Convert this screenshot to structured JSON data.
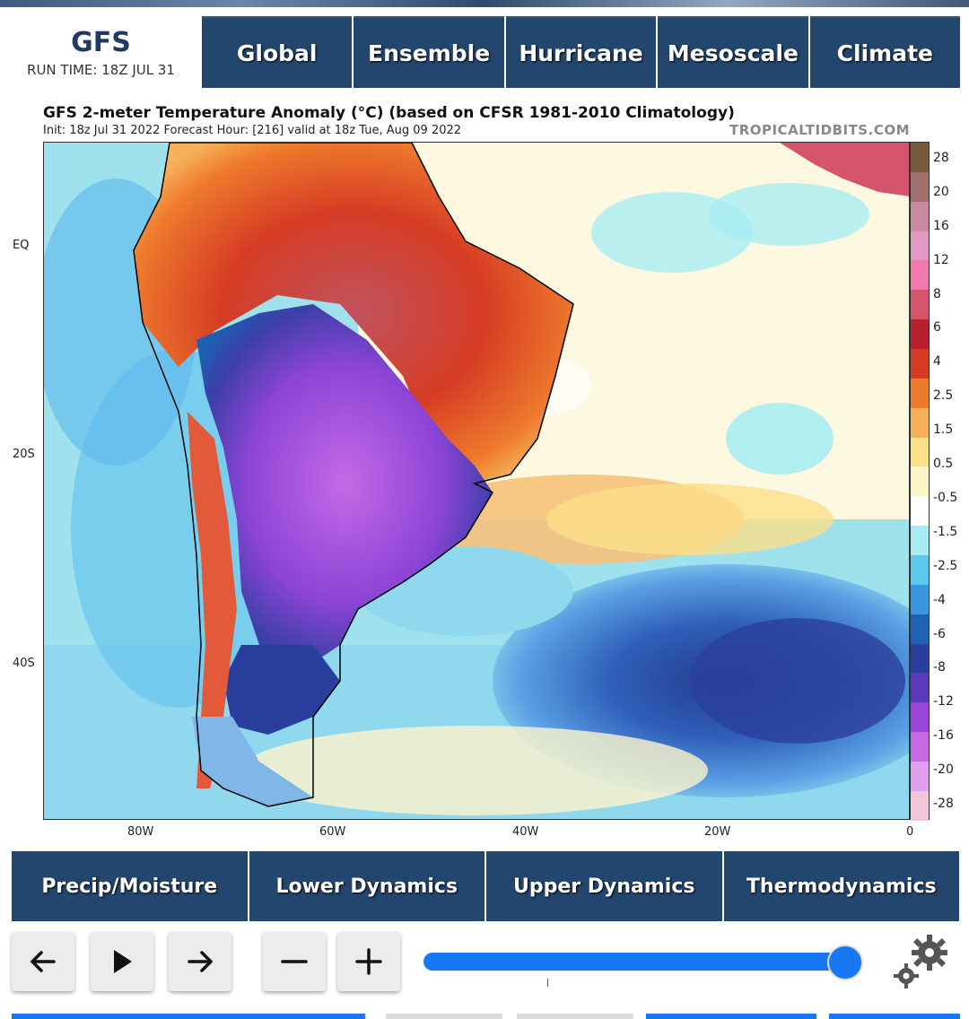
{
  "header": {
    "brand": "GFS",
    "run_time": "RUN TIME: 18Z JUL 31",
    "nav": [
      "Global",
      "Ensemble",
      "Hurricane",
      "Mesoscale",
      "Climate"
    ]
  },
  "map": {
    "title": "GFS 2-meter Temperature Anomaly (°C) (based on CFSR 1981-2010 Climatology)",
    "subtitle": "Init: 18z Jul 31 2022   Forecast Hour: [216]   valid at 18z Tue, Aug 09 2022",
    "credit": "TROPICALTIDBITS.COM",
    "lat_labels": [
      "EQ",
      "20S",
      "40S"
    ],
    "lon_labels": [
      "80W",
      "60W",
      "40W",
      "20W",
      "0"
    ],
    "colorbar_labels": [
      "28",
      "20",
      "16",
      "12",
      "8",
      "6",
      "4",
      "2.5",
      "1.5",
      "0.5",
      "-0.5",
      "-1.5",
      "-2.5",
      "-4",
      "-6",
      "-8",
      "-12",
      "-16",
      "-20",
      "-28"
    ],
    "colorbar_colors": [
      "#7a5a3c",
      "#a0706b",
      "#c98aa0",
      "#e29ac4",
      "#f07ab0",
      "#d4556b",
      "#b8202e",
      "#d63c24",
      "#ee7a2c",
      "#f6b15a",
      "#fbe08a",
      "#fff6c8",
      "#ffffff",
      "#a8ecf2",
      "#5cc8ee",
      "#3a96de",
      "#1e62b4",
      "#2a3e9e",
      "#5a3ab8",
      "#9a44d8",
      "#c66ae6",
      "#e0a0ee",
      "#f0c6d8"
    ]
  },
  "bottom_nav": [
    "Precip/Moisture",
    "Lower Dynamics",
    "Upper Dynamics",
    "Thermodynamics"
  ],
  "controls": {
    "prev_icon": "arrow-left-icon",
    "play_icon": "play-icon",
    "next_icon": "arrow-right-icon",
    "minus_icon": "minus-icon",
    "plus_icon": "plus-icon",
    "settings_icon": "gear-icon",
    "slider_position": 1.0
  }
}
